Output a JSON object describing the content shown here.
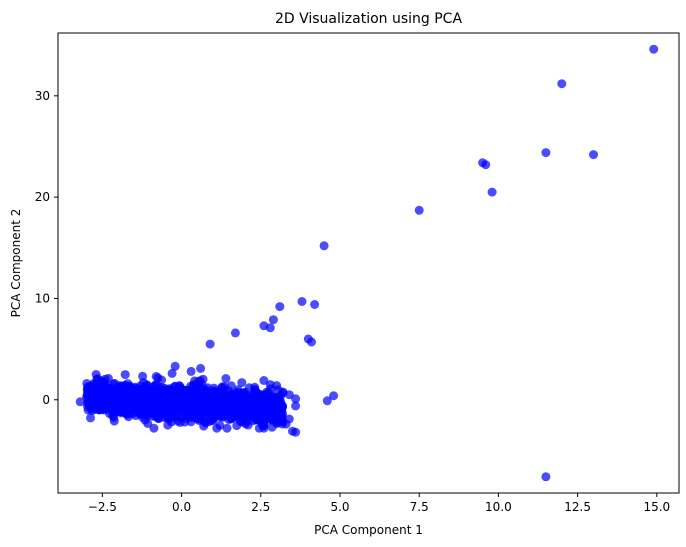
{
  "chart_data": {
    "type": "scatter",
    "title": "2D Visualization using  PCA",
    "xlabel": "PCA Component 1",
    "ylabel": "PCA Component 2",
    "xlim": [
      -3.9,
      15.7
    ],
    "ylim": [
      -9.2,
      36.2
    ],
    "xticks": [
      -2.5,
      0.0,
      2.5,
      5.0,
      7.5,
      10.0,
      12.5,
      15.0
    ],
    "xtick_labels": [
      "−2.5",
      "0.0",
      "2.5",
      "5.0",
      "7.5",
      "10.0",
      "12.5",
      "15.0"
    ],
    "yticks": [
      0,
      10,
      20,
      30
    ],
    "ytick_labels": [
      "0",
      "10",
      "20",
      "30"
    ],
    "grid": false,
    "legend": "none",
    "marker_color": "#0000ff",
    "marker_opacity": 0.7,
    "dense_cluster": {
      "x_range": [
        -3.0,
        3.2
      ],
      "y_range": [
        -2.8,
        2.5
      ],
      "approx_points": 1800
    },
    "points": [
      {
        "x": -3.2,
        "y": -0.2
      },
      {
        "x": -2.8,
        "y": 0.3
      },
      {
        "x": -2.6,
        "y": -0.6
      },
      {
        "x": -2.3,
        "y": 1.1
      },
      {
        "x": -1.9,
        "y": -1.3
      },
      {
        "x": -1.7,
        "y": 1.6
      },
      {
        "x": -1.2,
        "y": 1.7
      },
      {
        "x": -0.8,
        "y": 2.3
      },
      {
        "x": -0.3,
        "y": 2.6
      },
      {
        "x": -0.2,
        "y": 3.3
      },
      {
        "x": 0.1,
        "y": -2.2
      },
      {
        "x": 0.3,
        "y": 2.8
      },
      {
        "x": 0.6,
        "y": 3.1
      },
      {
        "x": 0.7,
        "y": -2.6
      },
      {
        "x": 0.9,
        "y": 5.5
      },
      {
        "x": 1.4,
        "y": 2.1
      },
      {
        "x": 1.7,
        "y": 6.6
      },
      {
        "x": 1.9,
        "y": 1.7
      },
      {
        "x": 2.1,
        "y": -2.5
      },
      {
        "x": 2.6,
        "y": -2.8
      },
      {
        "x": 2.6,
        "y": 7.3
      },
      {
        "x": 2.6,
        "y": 1.9
      },
      {
        "x": 2.8,
        "y": 7.1
      },
      {
        "x": 2.8,
        "y": 1.5
      },
      {
        "x": 2.9,
        "y": 7.9
      },
      {
        "x": 3.0,
        "y": 1.4
      },
      {
        "x": 3.1,
        "y": 9.2
      },
      {
        "x": 3.2,
        "y": 0.7
      },
      {
        "x": 3.3,
        "y": -2.4
      },
      {
        "x": 3.4,
        "y": -1.9
      },
      {
        "x": 3.4,
        "y": 0.5
      },
      {
        "x": 3.5,
        "y": -3.1
      },
      {
        "x": 3.6,
        "y": -3.2
      },
      {
        "x": 3.6,
        "y": -0.6
      },
      {
        "x": 3.8,
        "y": 9.7
      },
      {
        "x": 3.6,
        "y": 0.1
      },
      {
        "x": 4.0,
        "y": 6.0
      },
      {
        "x": 4.1,
        "y": 5.7
      },
      {
        "x": 4.2,
        "y": 9.4
      },
      {
        "x": 4.5,
        "y": 15.2
      },
      {
        "x": 4.6,
        "y": -0.1
      },
      {
        "x": 4.8,
        "y": 0.4
      },
      {
        "x": 7.5,
        "y": 18.7
      },
      {
        "x": 9.5,
        "y": 23.4
      },
      {
        "x": 9.6,
        "y": 23.2
      },
      {
        "x": 9.8,
        "y": 20.5
      },
      {
        "x": 11.5,
        "y": 24.4
      },
      {
        "x": 11.5,
        "y": -7.6
      },
      {
        "x": 12.0,
        "y": 31.2
      },
      {
        "x": 13.0,
        "y": 24.2
      },
      {
        "x": 14.9,
        "y": 34.6
      }
    ]
  }
}
